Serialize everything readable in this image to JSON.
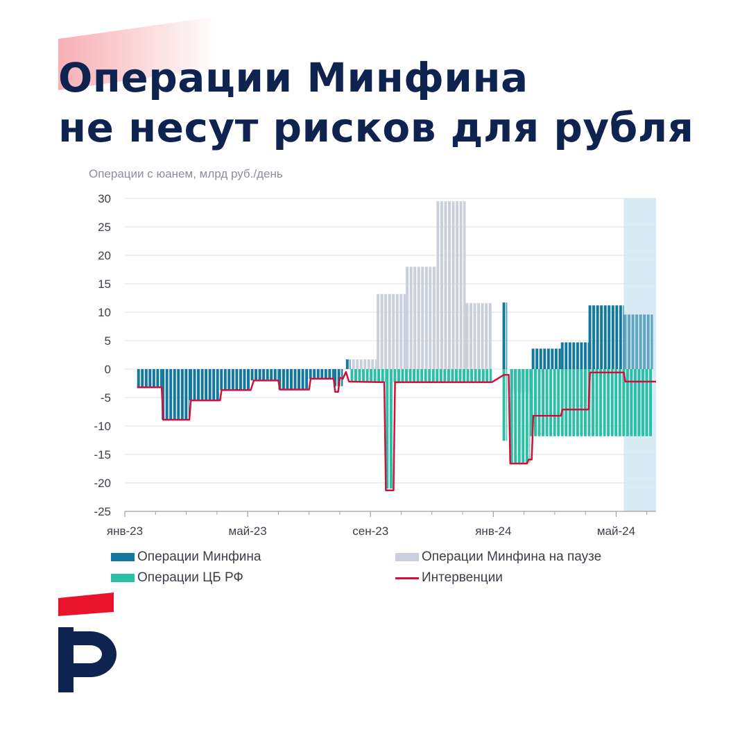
{
  "headline": {
    "line1": "Операции Минфина",
    "line2": "не несут рисков для рубля"
  },
  "colors": {
    "minfin": "#13789d",
    "paused": "#c9cfdc",
    "cb": "#2cbfa7",
    "intervention": "#d0103a",
    "forecast_band": "#d8ecf5",
    "title": "#0f2350",
    "brand_red": "#e8142c"
  },
  "logo": {
    "icon": "brand-logo-icon"
  },
  "chart_data": {
    "type": "bar",
    "ylabel": "Операции с юанем, млрд руб./день",
    "ylim": [
      -25,
      30
    ],
    "yticks": [
      30,
      25,
      20,
      15,
      10,
      5,
      0,
      -5,
      -10,
      -15,
      -20,
      -25
    ],
    "ytick_labels": [
      "30",
      "25",
      "20",
      "15",
      "10",
      "5",
      "0",
      "-5",
      "-10",
      "-15",
      "-20",
      "-25"
    ],
    "xlim": [
      0,
      17.3
    ],
    "xticks": [
      {
        "x": 0,
        "label": "янв-23"
      },
      {
        "x": 4,
        "label": "май-23"
      },
      {
        "x": 8,
        "label": "сен-23"
      },
      {
        "x": 12,
        "label": "янв-24"
      },
      {
        "x": 16,
        "label": "май-24"
      }
    ],
    "minor_ticks": [
      1,
      2,
      3,
      5,
      6,
      7,
      9,
      10,
      11,
      13,
      14,
      15,
      17
    ],
    "forecast_start": 16.25,
    "grid": true,
    "legend_placement": "bottom",
    "series": [
      {
        "name": "Операции Минфина",
        "kind": "bar",
        "segments": [
          {
            "x0": 0.4,
            "x1": 1.2,
            "v": -3.2
          },
          {
            "x0": 1.2,
            "x1": 2.1,
            "v": -8.9
          },
          {
            "x0": 2.1,
            "x1": 3.1,
            "v": -5.5
          },
          {
            "x0": 3.1,
            "x1": 4.1,
            "v": -3.7
          },
          {
            "x0": 4.1,
            "x1": 5.0,
            "v": -2.0
          },
          {
            "x0": 5.0,
            "x1": 6.0,
            "v": -3.6
          },
          {
            "x0": 6.0,
            "x1": 6.8,
            "v": -1.7
          },
          {
            "x0": 6.8,
            "x1": 7.1,
            "v": -3.0
          },
          {
            "x0": 7.2,
            "x1": 7.35,
            "v": 1.7
          },
          {
            "x0": 12.3,
            "x1": 12.45,
            "v": 11.7
          },
          {
            "x0": 12.55,
            "x1": 13.25,
            "v": -4.0
          },
          {
            "x0": 13.25,
            "x1": 14.2,
            "v": 3.6
          },
          {
            "x0": 14.2,
            "x1": 15.1,
            "v": 4.7
          },
          {
            "x0": 15.1,
            "x1": 16.25,
            "v": 11.2
          },
          {
            "x0": 16.25,
            "x1": 17.2,
            "v": 9.6
          }
        ]
      },
      {
        "name": "Операции Минфина на паузе",
        "kind": "bar",
        "segments": [
          {
            "x0": 7.4,
            "x1": 8.2,
            "v": 1.7
          },
          {
            "x0": 8.2,
            "x1": 9.15,
            "v": 13.2
          },
          {
            "x0": 9.15,
            "x1": 10.15,
            "v": 18.0
          },
          {
            "x0": 10.15,
            "x1": 11.1,
            "v": 29.5
          },
          {
            "x0": 11.1,
            "x1": 11.95,
            "v": 11.6
          }
        ]
      },
      {
        "name": "Операции ЦБ РФ",
        "kind": "bar",
        "segments": [
          {
            "x0": 7.35,
            "x1": 8.5,
            "v": -2.3
          },
          {
            "x0": 8.5,
            "x1": 8.75,
            "v": -21.0
          },
          {
            "x0": 8.75,
            "x1": 11.95,
            "v": -2.3
          },
          {
            "x0": 12.3,
            "x1": 12.45,
            "v": -12.6
          },
          {
            "x0": 12.55,
            "x1": 13.2,
            "v": -16.5
          },
          {
            "x0": 13.2,
            "x1": 17.2,
            "v": -11.8
          }
        ]
      },
      {
        "name": "Интервенции",
        "kind": "line",
        "points": [
          [
            0.4,
            -3.2
          ],
          [
            1.2,
            -3.2
          ],
          [
            1.25,
            -8.9
          ],
          [
            2.1,
            -8.9
          ],
          [
            2.15,
            -5.5
          ],
          [
            3.1,
            -5.5
          ],
          [
            3.15,
            -3.7
          ],
          [
            4.1,
            -3.7
          ],
          [
            4.2,
            -2.0
          ],
          [
            5.0,
            -2.0
          ],
          [
            5.05,
            -3.6
          ],
          [
            6.0,
            -3.6
          ],
          [
            6.05,
            -1.7
          ],
          [
            6.8,
            -1.7
          ],
          [
            6.85,
            -4.0
          ],
          [
            6.95,
            -4.0
          ],
          [
            7.0,
            -1.5
          ],
          [
            7.1,
            -1.7
          ],
          [
            7.2,
            -0.5
          ],
          [
            7.3,
            -2.2
          ],
          [
            8.45,
            -2.3
          ],
          [
            8.5,
            -21.3
          ],
          [
            8.75,
            -21.3
          ],
          [
            8.8,
            -2.3
          ],
          [
            11.95,
            -2.3
          ],
          [
            12.35,
            -1.0
          ],
          [
            12.5,
            -1.0
          ],
          [
            12.55,
            -16.6
          ],
          [
            13.1,
            -16.6
          ],
          [
            13.15,
            -15.9
          ],
          [
            13.25,
            -15.9
          ],
          [
            13.3,
            -8.2
          ],
          [
            14.2,
            -8.2
          ],
          [
            14.25,
            -7.1
          ],
          [
            15.1,
            -7.1
          ],
          [
            15.15,
            -0.6
          ],
          [
            16.25,
            -0.6
          ],
          [
            16.3,
            -2.2
          ],
          [
            17.3,
            -2.2
          ]
        ]
      }
    ]
  }
}
